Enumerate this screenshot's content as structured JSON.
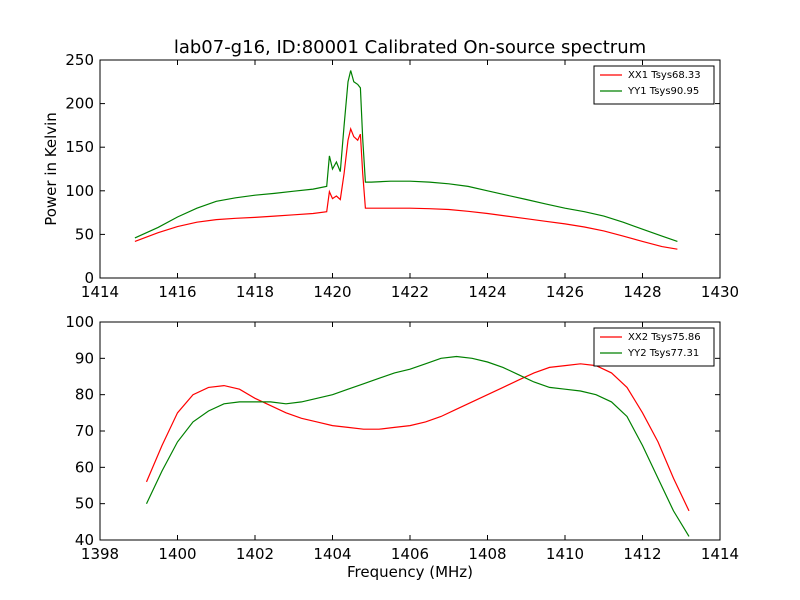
{
  "figure": {
    "title": "lab07-g16, ID:80001 Calibrated On-source spectrum",
    "xlabel": "Frequency (MHz)"
  },
  "chart_data": [
    {
      "type": "line",
      "ylabel": "Power in Kelvin",
      "xlim": [
        1414,
        1430
      ],
      "ylim": [
        0,
        250
      ],
      "xticks": [
        "1414",
        "1416",
        "1418",
        "1420",
        "1422",
        "1424",
        "1426",
        "1428",
        "1430"
      ],
      "yticks": [
        "0",
        "50",
        "100",
        "150",
        "200",
        "250"
      ],
      "grid": false,
      "legend_position": "top-right",
      "series": [
        {
          "name": "XX1 Tsys68.33",
          "color": "#ff0000",
          "x": [
            1414.9,
            1415.5,
            1416.0,
            1416.5,
            1417.0,
            1417.5,
            1418.0,
            1418.5,
            1419.0,
            1419.5,
            1419.85,
            1419.92,
            1420.0,
            1420.1,
            1420.2,
            1420.3,
            1420.4,
            1420.47,
            1420.55,
            1420.65,
            1420.72,
            1420.78,
            1420.85,
            1421.0,
            1421.5,
            1422.0,
            1422.5,
            1423.0,
            1423.5,
            1424.0,
            1424.5,
            1425.0,
            1425.5,
            1426.0,
            1426.5,
            1427.0,
            1427.5,
            1428.0,
            1428.5,
            1428.9
          ],
          "y": [
            42,
            52,
            59,
            64,
            67,
            68.5,
            69.5,
            71,
            72.5,
            74,
            76,
            99,
            91,
            94,
            90,
            120,
            158,
            171,
            162,
            158,
            165,
            120,
            80,
            80,
            80,
            80,
            79.5,
            78.5,
            76.5,
            74,
            71,
            68,
            65,
            62,
            58.5,
            54,
            48,
            42,
            36,
            33
          ]
        },
        {
          "name": "YY1 Tsys90.95",
          "color": "#008000",
          "x": [
            1414.9,
            1415.5,
            1416.0,
            1416.5,
            1417.0,
            1417.5,
            1418.0,
            1418.5,
            1419.0,
            1419.5,
            1419.85,
            1419.92,
            1420.0,
            1420.1,
            1420.2,
            1420.3,
            1420.4,
            1420.47,
            1420.55,
            1420.65,
            1420.72,
            1420.78,
            1420.85,
            1421.0,
            1421.5,
            1422.0,
            1422.5,
            1423.0,
            1423.5,
            1424.0,
            1424.5,
            1425.0,
            1425.5,
            1426.0,
            1426.5,
            1427.0,
            1427.5,
            1428.0,
            1428.5,
            1428.9
          ],
          "y": [
            46,
            58,
            70,
            80,
            88,
            92,
            95,
            97,
            99.5,
            102,
            105,
            140,
            125,
            133,
            122,
            175,
            225,
            238,
            225,
            222,
            218,
            160,
            110,
            110,
            111,
            111,
            110,
            108,
            105,
            100,
            95,
            90,
            85,
            80,
            76,
            71,
            64,
            56,
            48,
            42
          ]
        }
      ]
    },
    {
      "type": "line",
      "ylabel": "",
      "xlim": [
        1398,
        1414
      ],
      "ylim": [
        40,
        100
      ],
      "xticks": [
        "1398",
        "1400",
        "1402",
        "1404",
        "1406",
        "1408",
        "1410",
        "1412",
        "1414"
      ],
      "yticks": [
        "40",
        "50",
        "60",
        "70",
        "80",
        "90",
        "100"
      ],
      "grid": false,
      "legend_position": "top-right",
      "series": [
        {
          "name": "XX2 Tsys75.86",
          "color": "#ff0000",
          "x": [
            1399.2,
            1399.6,
            1400.0,
            1400.4,
            1400.8,
            1401.2,
            1401.6,
            1402.0,
            1402.4,
            1402.8,
            1403.2,
            1403.6,
            1404.0,
            1404.4,
            1404.8,
            1405.2,
            1405.6,
            1406.0,
            1406.4,
            1406.8,
            1407.2,
            1407.6,
            1408.0,
            1408.4,
            1408.8,
            1409.2,
            1409.6,
            1410.0,
            1410.4,
            1410.8,
            1411.2,
            1411.6,
            1412.0,
            1412.4,
            1412.8,
            1413.2
          ],
          "y": [
            56,
            66,
            75,
            80,
            82,
            82.5,
            81.5,
            79,
            77,
            75,
            73.5,
            72.5,
            71.5,
            71,
            70.5,
            70.5,
            71,
            71.5,
            72.5,
            74,
            76,
            78,
            80,
            82,
            84,
            86,
            87.5,
            88,
            88.5,
            88,
            86,
            82,
            75,
            67,
            57,
            48
          ]
        },
        {
          "name": "YY2 Tsys77.31",
          "color": "#008000",
          "x": [
            1399.2,
            1399.6,
            1400.0,
            1400.4,
            1400.8,
            1401.2,
            1401.6,
            1402.0,
            1402.4,
            1402.8,
            1403.2,
            1403.6,
            1404.0,
            1404.4,
            1404.8,
            1405.2,
            1405.6,
            1406.0,
            1406.4,
            1406.8,
            1407.2,
            1407.6,
            1408.0,
            1408.4,
            1408.8,
            1409.2,
            1409.6,
            1410.0,
            1410.4,
            1410.8,
            1411.2,
            1411.6,
            1412.0,
            1412.4,
            1412.8,
            1413.2
          ],
          "y": [
            50,
            59,
            67,
            72.5,
            75.5,
            77.5,
            78,
            78,
            78,
            77.5,
            78,
            79,
            80,
            81.5,
            83,
            84.5,
            86,
            87,
            88.5,
            90,
            90.5,
            90,
            89,
            87.5,
            85.5,
            83.5,
            82,
            81.5,
            81,
            80,
            78,
            74,
            66,
            57,
            48,
            41
          ]
        }
      ]
    }
  ]
}
